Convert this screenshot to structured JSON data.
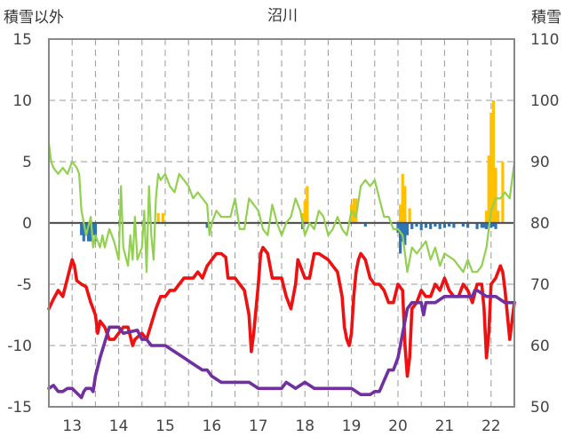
{
  "chart_data": {
    "type": "line",
    "title": "沼川",
    "ylabel_left": "積雪以外",
    "ylabel_right": "積雪",
    "ylim_left": [
      -15,
      15
    ],
    "ylim_right": [
      50,
      110
    ],
    "yticks_left": [
      "15",
      "10",
      "5",
      "0",
      "-5",
      "-10",
      "-15"
    ],
    "yticks_right": [
      "110",
      "100",
      "90",
      "80",
      "70",
      "60",
      "50"
    ],
    "x_range": [
      12.5,
      22.5
    ],
    "categories": [
      "13",
      "14",
      "15",
      "16",
      "17",
      "18",
      "19",
      "20",
      "21",
      "22"
    ],
    "grid": true,
    "series": [
      {
        "name": "red",
        "axis": "left",
        "color": "#ee1111",
        "x": [
          12.5,
          12.6,
          12.7,
          12.8,
          12.9,
          13.0,
          13.05,
          13.1,
          13.2,
          13.3,
          13.4,
          13.5,
          13.55,
          13.6,
          13.7,
          13.8,
          13.9,
          14.0,
          14.1,
          14.2,
          14.3,
          14.35,
          14.5,
          14.6,
          14.8,
          14.9,
          15.0,
          15.1,
          15.2,
          15.4,
          15.6,
          15.7,
          15.8,
          15.9,
          16.0,
          16.1,
          16.2,
          16.3,
          16.35,
          16.5,
          16.6,
          16.7,
          16.8,
          16.85,
          16.9,
          17.0,
          17.05,
          17.1,
          17.2,
          17.3,
          17.5,
          17.6,
          17.7,
          17.8,
          17.85,
          17.9,
          18.0,
          18.1,
          18.2,
          18.3,
          18.5,
          18.6,
          18.7,
          18.8,
          18.85,
          18.9,
          18.95,
          19.0,
          19.05,
          19.1,
          19.15,
          19.2,
          19.3,
          19.4,
          19.5,
          19.6,
          19.7,
          19.8,
          19.9,
          20.0,
          20.1,
          20.15,
          20.2,
          20.25,
          20.3,
          20.4,
          20.5,
          20.6,
          20.7,
          20.8,
          20.9,
          21.0,
          21.1,
          21.2,
          21.3,
          21.4,
          21.5,
          21.6,
          21.7,
          21.8,
          21.85,
          21.9,
          21.95,
          22.0,
          22.1,
          22.2,
          22.25,
          22.3,
          22.4,
          22.5
        ],
        "y": [
          -7,
          -6.2,
          -5.5,
          -6,
          -4.5,
          -3,
          -3.5,
          -4.7,
          -5,
          -5.2,
          -6.5,
          -7.5,
          -9,
          -8,
          -8.5,
          -9.5,
          -9.5,
          -9,
          -8.5,
          -8.5,
          -10,
          -9.5,
          -9,
          -9.5,
          -7,
          -6,
          -6,
          -5.5,
          -5.5,
          -4.5,
          -4.5,
          -4,
          -4.5,
          -3.5,
          -3,
          -2.5,
          -2.5,
          -2.8,
          -4.5,
          -4.5,
          -5,
          -5.5,
          -7.5,
          -10.5,
          -9,
          -5,
          -2.5,
          -2,
          -2.5,
          -4.5,
          -4.5,
          -6,
          -7,
          -5,
          -3,
          -3.5,
          -4.5,
          -4.5,
          -2.5,
          -2.5,
          -3,
          -3.5,
          -4,
          -6,
          -8.5,
          -9.5,
          -10,
          -9,
          -6,
          -4,
          -3,
          -2.5,
          -3,
          -4.5,
          -5,
          -5,
          -5.5,
          -6.5,
          -6.5,
          -5,
          -5.5,
          -10,
          -12.5,
          -11,
          -7,
          -6.5,
          -5.5,
          -6,
          -6,
          -5,
          -5.5,
          -4.5,
          -5.5,
          -6,
          -6,
          -5,
          -5.5,
          -6.5,
          -5,
          -5,
          -7,
          -11,
          -9,
          -5,
          -4.5,
          -3.5,
          -4,
          -5.5,
          -9.5,
          -6.5
        ]
      },
      {
        "name": "purple",
        "axis": "right",
        "color": "#7030a0",
        "x": [
          12.5,
          12.6,
          12.7,
          12.8,
          12.9,
          13.0,
          13.2,
          13.25,
          13.3,
          13.4,
          13.45,
          13.5,
          13.6,
          13.8,
          13.9,
          14.0,
          14.1,
          14.4,
          14.5,
          14.6,
          14.7,
          14.8,
          15.0,
          15.2,
          15.4,
          15.6,
          15.8,
          15.9,
          16.0,
          16.2,
          16.5,
          16.8,
          17.0,
          17.3,
          17.5,
          17.6,
          17.8,
          18.0,
          18.2,
          18.4,
          18.6,
          19.0,
          19.2,
          19.4,
          19.5,
          19.6,
          19.8,
          19.9,
          20.0,
          20.2,
          20.3,
          20.5,
          20.55,
          20.6,
          20.8,
          21.0,
          21.2,
          21.4,
          21.5,
          21.6,
          21.65,
          21.7,
          21.9,
          22.0,
          22.1,
          22.3,
          22.5
        ],
        "y": [
          53,
          53.5,
          52.5,
          52.5,
          53,
          53,
          51.5,
          52.5,
          53,
          53,
          52.5,
          55,
          58,
          63,
          63,
          63,
          62,
          62.5,
          61,
          61,
          60,
          60,
          60,
          59,
          58,
          57,
          56,
          56,
          55,
          54,
          54,
          54,
          53,
          53,
          53,
          54,
          53,
          54,
          53,
          53,
          53,
          53,
          52,
          52,
          52.5,
          52.5,
          56,
          56,
          58,
          66,
          67,
          67,
          65,
          67,
          67,
          68,
          68,
          68,
          68,
          68,
          69,
          69,
          68,
          68,
          68,
          67,
          67
        ]
      },
      {
        "name": "green",
        "axis": "left",
        "color": "#92d050",
        "x": [
          12.5,
          12.55,
          12.6,
          12.7,
          12.8,
          12.9,
          13.0,
          13.1,
          13.15,
          13.2,
          13.3,
          13.4,
          13.45,
          13.5,
          13.55,
          13.6,
          13.65,
          13.7,
          13.8,
          13.9,
          14.0,
          14.05,
          14.1,
          14.2,
          14.25,
          14.3,
          14.35,
          14.4,
          14.5,
          14.55,
          14.6,
          14.65,
          14.7,
          14.75,
          14.8,
          14.85,
          14.9,
          15.0,
          15.1,
          15.2,
          15.3,
          15.4,
          15.5,
          15.6,
          15.7,
          15.8,
          15.9,
          15.95,
          16.0,
          16.1,
          16.2,
          16.3,
          16.4,
          16.5,
          16.6,
          16.7,
          16.8,
          16.9,
          17.0,
          17.1,
          17.2,
          17.3,
          17.4,
          17.5,
          17.6,
          17.7,
          17.8,
          17.9,
          18.0,
          18.1,
          18.2,
          18.3,
          18.4,
          18.5,
          18.6,
          18.7,
          18.8,
          18.9,
          19.0,
          19.1,
          19.2,
          19.3,
          19.4,
          19.5,
          19.6,
          19.7,
          19.8,
          19.9,
          20.0,
          20.1,
          20.2,
          20.3,
          20.4,
          20.5,
          20.6,
          20.7,
          20.8,
          20.9,
          21.0,
          21.2,
          21.4,
          21.5,
          21.6,
          21.7,
          21.8,
          21.9,
          22.0,
          22.1,
          22.2,
          22.3,
          22.4,
          22.5
        ],
        "y": [
          6.5,
          5,
          4.5,
          4,
          4.5,
          4,
          5,
          4.5,
          4,
          1,
          -1,
          0.5,
          -2,
          -1,
          -1.5,
          -2,
          -1,
          -2,
          -0.5,
          -1.5,
          -3,
          3,
          -2,
          -3.5,
          -1,
          -3,
          0.5,
          -3,
          -2,
          1,
          -4,
          3,
          -1,
          -3,
          2,
          4,
          3.5,
          4,
          3,
          2.5,
          4,
          3.5,
          3,
          2,
          2.5,
          2,
          1.5,
          -1,
          0,
          1,
          0.5,
          0.5,
          0.5,
          2,
          -0.5,
          -0.5,
          2,
          1.5,
          1,
          -0.5,
          -1,
          1.5,
          0,
          -1,
          0,
          0.5,
          2,
          1,
          -1,
          0,
          -0.5,
          1,
          0.5,
          -1,
          -0.5,
          0.5,
          -0.5,
          -1,
          1,
          0.5,
          3,
          3.5,
          3,
          3.5,
          2,
          0.5,
          0.5,
          -0.5,
          -0.5,
          -1,
          -4,
          -2,
          -2.5,
          -2,
          -1.5,
          -3,
          -2,
          -3.5,
          -2.5,
          -3,
          -4,
          -3,
          -4,
          -4,
          -3.5,
          -2,
          1,
          2,
          2,
          2.5,
          2,
          5
        ]
      }
    ],
    "bars": [
      {
        "name": "orange",
        "axis": "left",
        "color": "#ffc000",
        "x": [
          14.85,
          14.95,
          17.95,
          18.0,
          18.05,
          19.0,
          19.05,
          19.1,
          20.05,
          20.1,
          20.15,
          20.25,
          21.9,
          21.95,
          22.0,
          22.05,
          22.1,
          22.15,
          22.25
        ],
        "values": [
          0.8,
          0.8,
          0.8,
          1.8,
          3,
          1.5,
          2,
          2,
          1.5,
          4,
          3,
          1.2,
          1,
          5.5,
          9,
          10,
          4.5,
          1,
          5
        ]
      },
      {
        "name": "blue",
        "axis": "left",
        "color": "#2e75b6",
        "x": [
          13.2,
          13.25,
          13.3,
          13.35,
          13.4,
          13.45,
          13.5,
          15.9,
          17.95,
          19.3,
          20.0,
          20.05,
          20.1,
          20.15,
          20.2,
          20.3,
          20.4,
          20.5,
          20.6,
          20.7,
          20.8,
          20.9,
          21.0,
          21.1,
          21.2,
          21.4,
          21.5,
          21.7,
          21.8,
          21.85,
          21.9,
          21.95,
          22.0,
          22.05,
          22.1
        ],
        "values": [
          -1,
          -1.5,
          -1,
          -1.5,
          -1.5,
          -1,
          -1.5,
          -0.4,
          -0.5,
          -0.3,
          -0.8,
          -2.5,
          -1.5,
          -1.8,
          -1,
          -0.5,
          -0.3,
          -0.6,
          -0.4,
          -0.5,
          -0.3,
          -0.5,
          -0.4,
          -0.3,
          -0.4,
          -0.3,
          -0.4,
          -0.5,
          -0.4,
          -0.4,
          -0.5,
          -0.3,
          -0.4,
          -0.3,
          -0.5
        ]
      }
    ]
  }
}
